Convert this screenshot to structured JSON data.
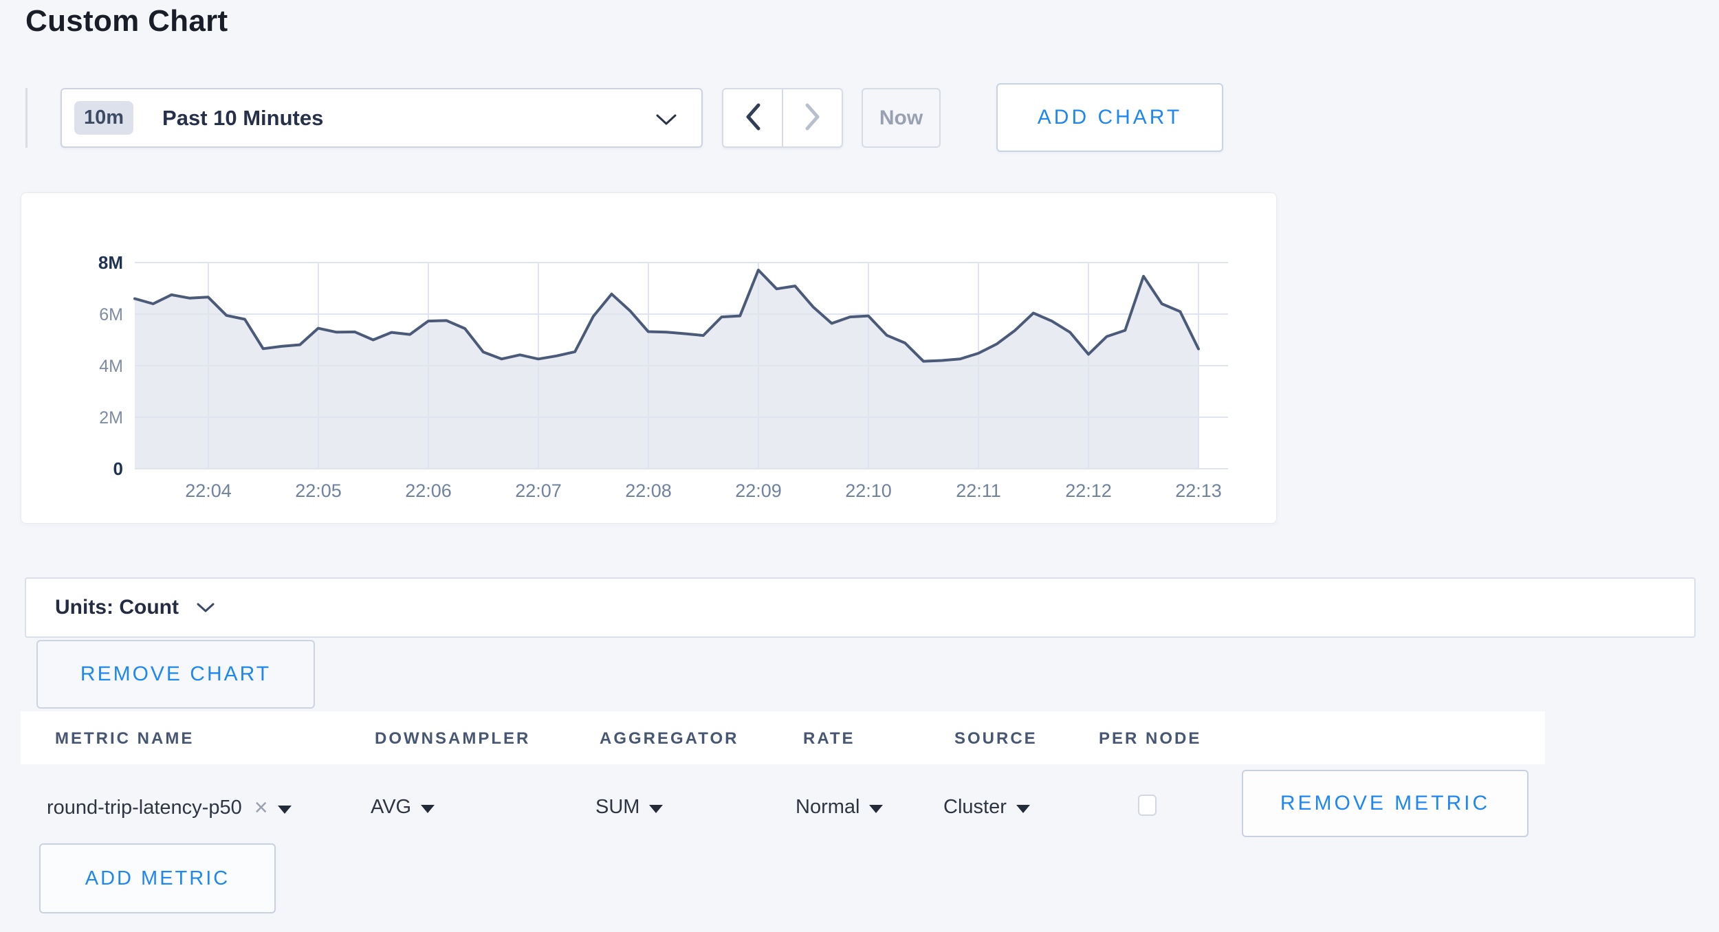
{
  "page": {
    "title": "Custom Chart"
  },
  "colors": {
    "accent_blue": "#1e87f0",
    "grid": "#dfe4ee",
    "line": "#4a5a78",
    "area_fill": "#e9ebf2",
    "page_background": "#f4f6fa"
  },
  "toolbar": {
    "time_range_badge": "10m",
    "time_range_label": "Past 10 Minutes",
    "now_label": "Now",
    "add_chart_label": "ADD CHART"
  },
  "chart_data": {
    "type": "area",
    "title": "",
    "xlabel": "",
    "ylabel": "",
    "ylim": [
      0,
      8000000
    ],
    "grid": true,
    "legend": false,
    "y_tick_labels": [
      "0",
      "2M",
      "4M",
      "6M",
      "8M"
    ],
    "x_tick_labels": [
      "22:04",
      "22:05",
      "22:06",
      "22:07",
      "22:08",
      "22:09",
      "22:10",
      "22:11",
      "22:12",
      "22:13"
    ],
    "interval_seconds": 10,
    "x_times": [
      "22:03:20",
      "22:03:30",
      "22:03:40",
      "22:03:50",
      "22:04:00",
      "22:04:10",
      "22:04:20",
      "22:04:30",
      "22:04:40",
      "22:04:50",
      "22:05:00",
      "22:05:10",
      "22:05:20",
      "22:05:30",
      "22:05:40",
      "22:05:50",
      "22:06:00",
      "22:06:10",
      "22:06:20",
      "22:06:30",
      "22:06:40",
      "22:06:50",
      "22:07:00",
      "22:07:10",
      "22:07:20",
      "22:07:30",
      "22:07:40",
      "22:07:50",
      "22:08:00",
      "22:08:10",
      "22:08:20",
      "22:08:30",
      "22:08:40",
      "22:08:50",
      "22:09:00",
      "22:09:10",
      "22:09:20",
      "22:09:30",
      "22:09:40",
      "22:09:50",
      "22:10:00",
      "22:10:10",
      "22:10:20",
      "22:10:30",
      "22:10:40",
      "22:10:50",
      "22:11:00",
      "22:11:10",
      "22:11:20",
      "22:11:30",
      "22:11:40",
      "22:11:50",
      "22:12:00",
      "22:12:10",
      "22:12:20",
      "22:12:30",
      "22:12:40",
      "22:12:50",
      "22:13:00"
    ],
    "series": [
      {
        "name": "round-trip-latency-p50",
        "line_color": "#4a5a78",
        "fill_color": "#e9ebf2",
        "values_millions": [
          6.6,
          6.4,
          6.75,
          6.62,
          6.66,
          5.95,
          5.8,
          4.66,
          4.75,
          4.81,
          5.45,
          5.3,
          5.31,
          5.0,
          5.29,
          5.21,
          5.73,
          5.75,
          5.44,
          4.53,
          4.26,
          4.42,
          4.26,
          4.38,
          4.54,
          5.91,
          6.78,
          6.13,
          5.32,
          5.3,
          5.24,
          5.17,
          5.89,
          5.93,
          7.71,
          6.98,
          7.09,
          6.27,
          5.64,
          5.89,
          5.93,
          5.18,
          4.88,
          4.17,
          4.2,
          4.26,
          4.48,
          4.84,
          5.37,
          6.04,
          5.73,
          5.29,
          4.44,
          5.13,
          5.37,
          7.47,
          6.4,
          6.1,
          4.65
        ]
      }
    ]
  },
  "units_bar": {
    "label": "Units: Count"
  },
  "buttons": {
    "remove_chart": "REMOVE CHART",
    "add_metric": "ADD METRIC"
  },
  "metrics_table": {
    "headers": [
      "METRIC NAME",
      "DOWNSAMPLER",
      "AGGREGATOR",
      "RATE",
      "SOURCE",
      "PER NODE"
    ],
    "rows": [
      {
        "metric_name": "round-trip-latency-p50",
        "remove_tag_icon": "×",
        "downsampler": "AVG",
        "aggregator": "SUM",
        "rate": "Normal",
        "source": "Cluster",
        "per_node_checked": false,
        "remove_metric_label": "REMOVE METRIC"
      }
    ]
  }
}
